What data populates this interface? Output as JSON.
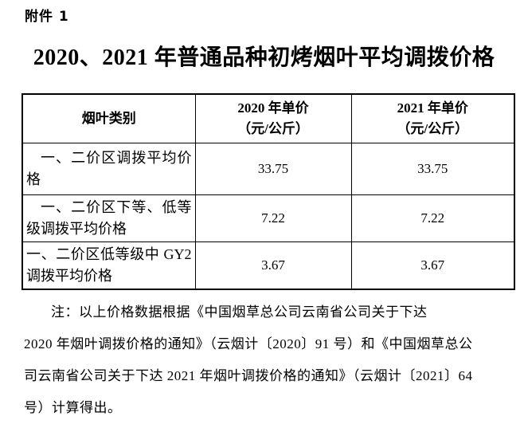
{
  "attachment_label": "附件 1",
  "title": "2020、2021 年普通品种初烤烟叶平均调拨价格",
  "table": {
    "headers": {
      "category": "烟叶类别",
      "col_2020": {
        "line1": "2020 年单价",
        "line2": "（元/公斤）"
      },
      "col_2021": {
        "line1": "2021 年单价",
        "line2": "（元/公斤）"
      }
    },
    "rows": [
      {
        "label": "一、二价区调拨平均价格",
        "price_2020": "33.75",
        "price_2021": "33.75"
      },
      {
        "label": "一、二价区下等、低等级调拨平均价格",
        "price_2020": "7.22",
        "price_2021": "7.22"
      },
      {
        "label": "一、二价区低等级中 GY2 调拨平均价格",
        "price_2020": "3.67",
        "price_2021": "3.67"
      }
    ]
  },
  "note": {
    "lines": [
      "注：以上价格数据根据《中国烟草总公司云南省公司关于下达",
      "2020 年烟叶调拨价格的通知》（云烟计〔2020〕91 号）和《中国烟草总公",
      "司云南省公司关于下达 2021 年烟叶调拨价格的通知》（云烟计〔2021〕64",
      "号）计算得出。"
    ]
  },
  "colors": {
    "text": "#000000",
    "border": "#000000",
    "background": "#ffffff"
  }
}
